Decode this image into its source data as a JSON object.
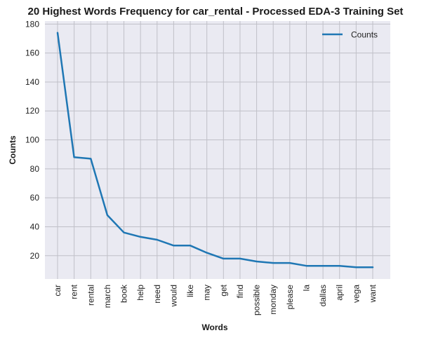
{
  "chart_data": {
    "type": "line",
    "title": "20 Highest Words Frequency for car_rental - Processed EDA-3 Training Set",
    "xlabel": "Words",
    "ylabel": "Counts",
    "categories": [
      "car",
      "rent",
      "rental",
      "march",
      "book",
      "help",
      "need",
      "would",
      "like",
      "may",
      "get",
      "find",
      "possible",
      "monday",
      "please",
      "la",
      "dallas",
      "april",
      "vega",
      "want"
    ],
    "series": [
      {
        "name": "Counts",
        "values": [
          174,
          88,
          87,
          48,
          36,
          33,
          31,
          27,
          27,
          22,
          18,
          18,
          16,
          15,
          15,
          13,
          13,
          13,
          12,
          12
        ]
      }
    ],
    "ylim": [
      3.9,
      182.1
    ],
    "yticks": [
      20,
      40,
      60,
      80,
      100,
      120,
      140,
      160,
      180
    ],
    "grid": true,
    "legend_position": "top-right",
    "colors": {
      "background": "#EAEAF2",
      "grid": "#C0C0C8",
      "line": "#1F77B4"
    }
  }
}
